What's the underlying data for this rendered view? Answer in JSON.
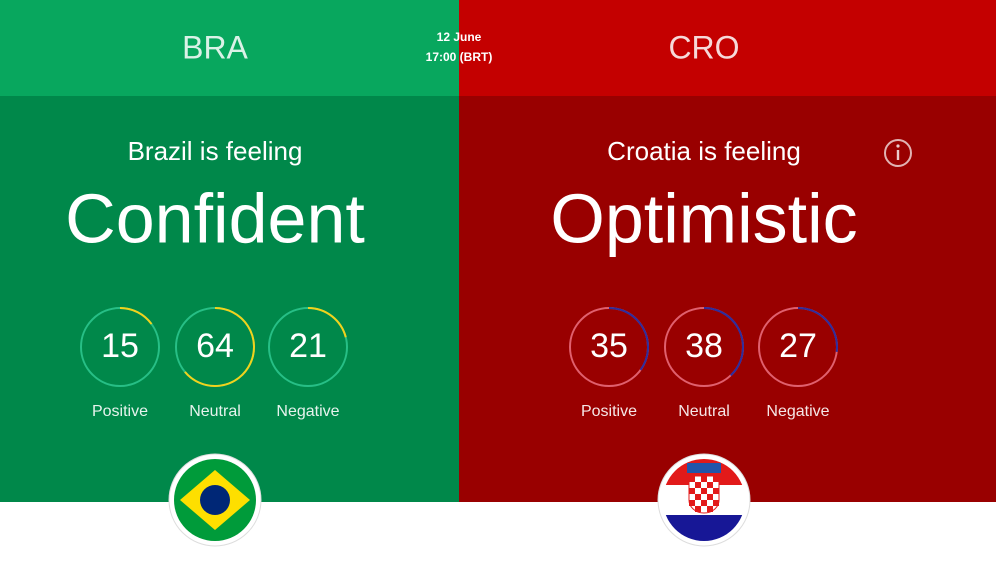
{
  "header": {
    "date": "12 June",
    "time": "17:00 (BRT)"
  },
  "teams": [
    {
      "code": "BRA",
      "feeling": "Brazil is feeling",
      "mood": "Confident",
      "stats": [
        {
          "value": 15,
          "label": "Positive"
        },
        {
          "value": 64,
          "label": "Neutral"
        },
        {
          "value": 21,
          "label": "Negative"
        }
      ]
    },
    {
      "code": "CRO",
      "feeling": "Croatia is feeling",
      "mood": "Optimistic",
      "stats": [
        {
          "value": 35,
          "label": "Positive"
        },
        {
          "value": 38,
          "label": "Neutral"
        },
        {
          "value": 27,
          "label": "Negative"
        }
      ]
    }
  ]
}
